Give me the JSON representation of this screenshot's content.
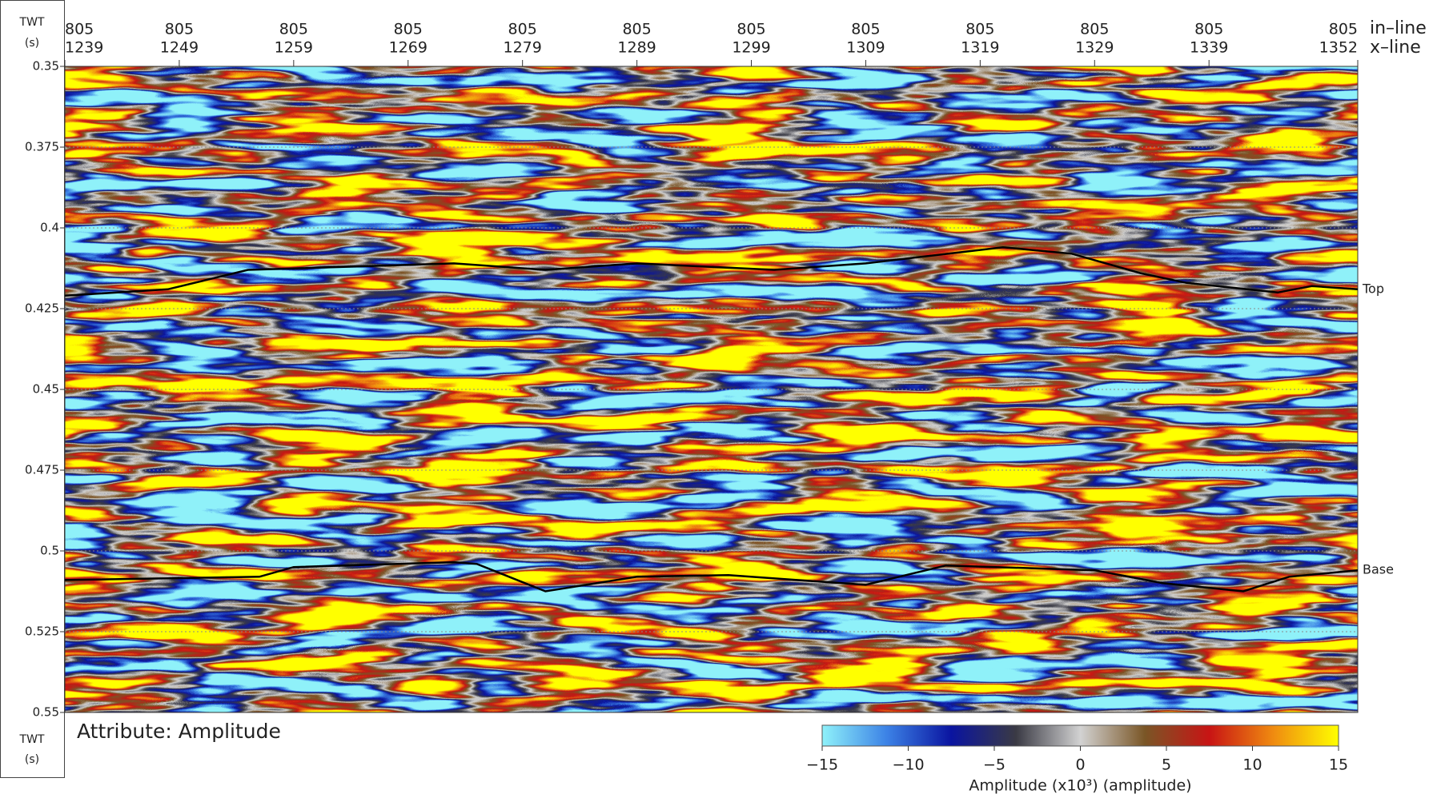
{
  "chart_data": {
    "type": "seismic",
    "y_label": "TWT",
    "y_unit": "(s)",
    "ylim": [
      0.35,
      0.55
    ],
    "yticks": [
      0.35,
      0.375,
      0.4,
      0.425,
      0.45,
      0.475,
      0.5,
      0.525,
      0.55
    ],
    "grid": true,
    "xlim": [
      1239,
      1352
    ],
    "xticks": [
      1239,
      1249,
      1259,
      1269,
      1279,
      1289,
      1299,
      1309,
      1319,
      1329,
      1339,
      1352
    ],
    "inline_ticks": [
      805,
      805,
      805,
      805,
      805,
      805,
      805,
      805,
      805,
      805,
      805,
      805
    ],
    "inline_label": "in–line",
    "xline_label": "x–line",
    "attribute_label": "Attribute: Amplitude",
    "series": [
      {
        "name": "Top",
        "color": "#000000",
        "x": [
          1239,
          1248,
          1255,
          1273,
          1281,
          1289,
          1301,
          1309,
          1321,
          1327,
          1333,
          1337,
          1345,
          1348,
          1352
        ],
        "values": [
          0.421,
          0.419,
          0.413,
          0.411,
          0.413,
          0.411,
          0.413,
          0.411,
          0.406,
          0.408,
          0.414,
          0.417,
          0.42,
          0.418,
          0.419
        ]
      },
      {
        "name": "Base",
        "color": "#000000",
        "x": [
          1239,
          1256,
          1259,
          1273,
          1275,
          1281,
          1289,
          1297,
          1309,
          1316,
          1329,
          1335,
          1342,
          1346,
          1352
        ],
        "values": [
          0.509,
          0.508,
          0.505,
          0.5035,
          0.504,
          0.5125,
          0.508,
          0.5075,
          0.5105,
          0.5045,
          0.506,
          0.51,
          0.5125,
          0.508,
          0.506
        ]
      }
    ],
    "colorbar": {
      "colors": [
        "#8ff2fa",
        "#3c82e6",
        "#0a14a0",
        "#3a3a44",
        "#d2d2d2",
        "#7a5626",
        "#c81414",
        "#f08c10",
        "#ffff00"
      ],
      "lim": [
        -15,
        15
      ],
      "ticks": [
        {
          "value": -15,
          "label": "−15"
        },
        {
          "value": -10,
          "label": "−10"
        },
        {
          "value": -5,
          "label": "−5"
        },
        0,
        5,
        10,
        15
      ],
      "label": "Amplitude (x10³) (amplitude)"
    }
  }
}
